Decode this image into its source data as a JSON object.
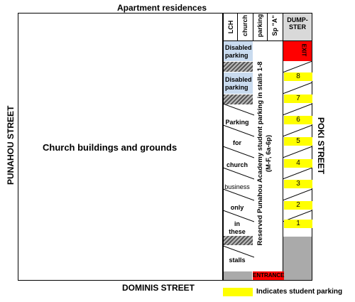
{
  "streets": {
    "top": "Apartment residences",
    "left": "PUNAHOU STREET",
    "right": "POKI STREET",
    "bottom": "DOMINIS STREET"
  },
  "church_label": "Church buildings and grounds",
  "header_cols": [
    "LCH",
    "church",
    "parking",
    "Sp \"A\""
  ],
  "dumpster": "DUMP-\nSTER",
  "exit": "EXIT",
  "entrance": "ENTRANCE",
  "disabled": [
    "Disabled\nparking",
    "Disabled\nparking"
  ],
  "church_parking_words": [
    "Parking",
    "for",
    "church",
    "business",
    "only",
    "in\nthese",
    "stalls"
  ],
  "reserved_text": "Reserved Punahou Academy student parking in stalls 1-8 (M-F, 6a-6p)",
  "stalls": [
    "8",
    "7",
    "6",
    "5",
    "4",
    "3",
    "2",
    "1"
  ],
  "legend": "Indicates student parking",
  "colors": {
    "student": "#ffff00",
    "disabled": "#c9dbef",
    "exit": "#ff0000",
    "gray": "#aaaaaa"
  }
}
